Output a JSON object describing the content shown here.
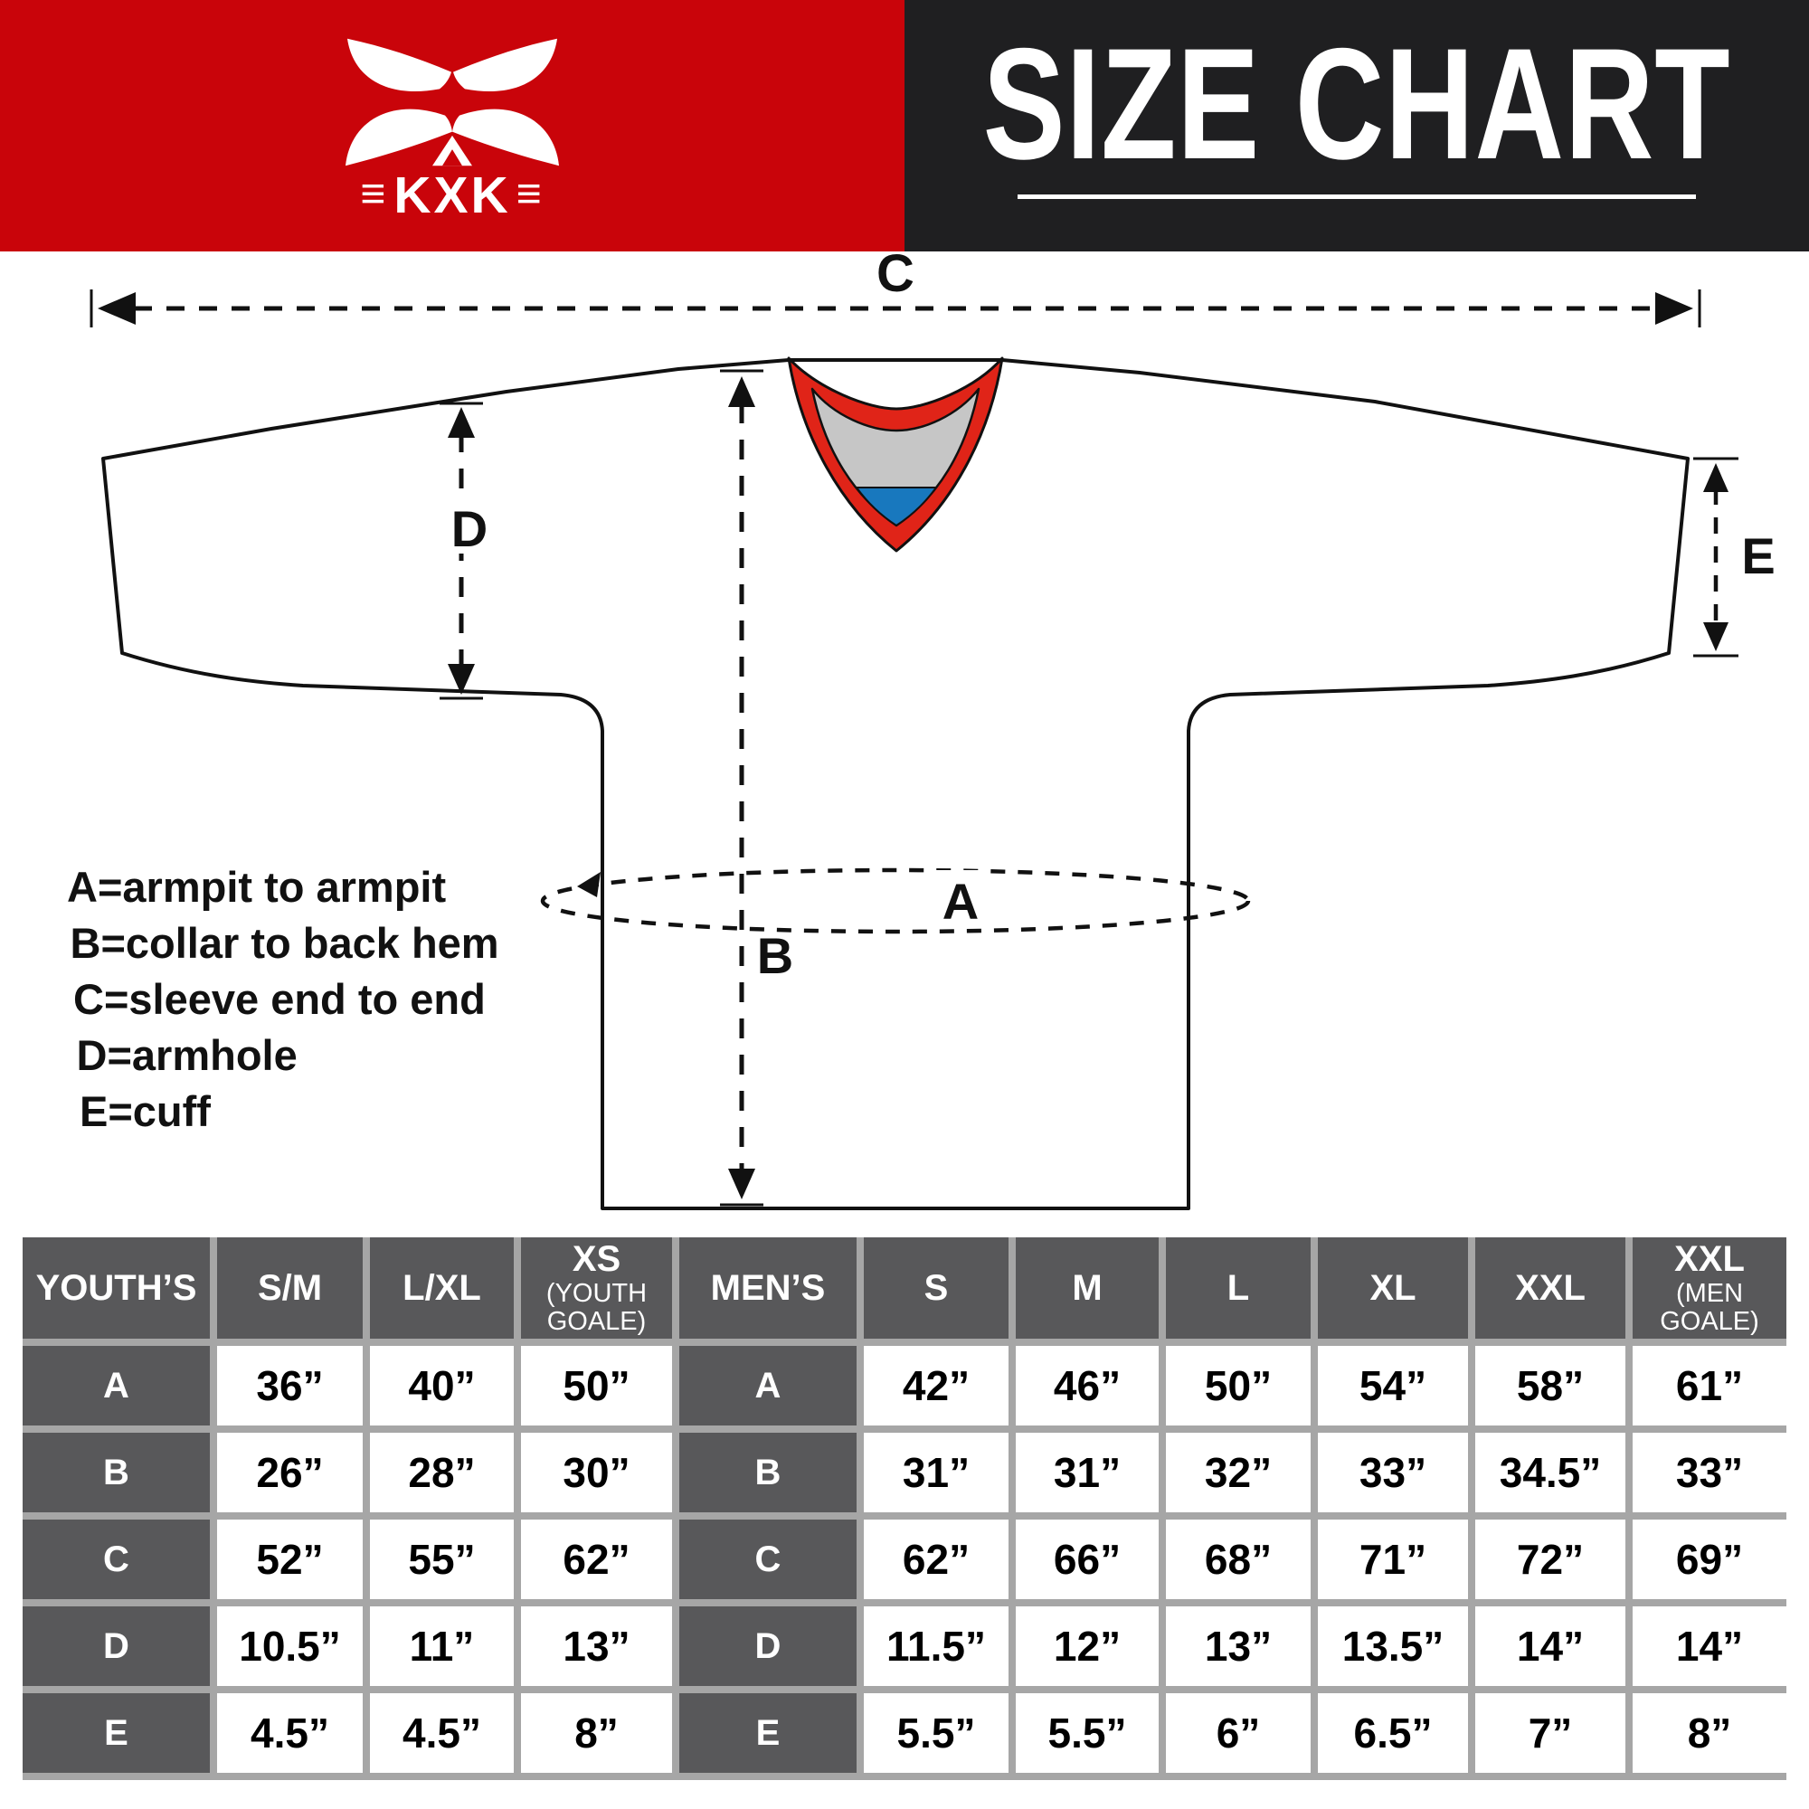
{
  "logo": {
    "text": "KXK",
    "bars": "≡"
  },
  "header": {
    "title": "SIZE CHART"
  },
  "colors": {
    "banner_red": "#c9040a",
    "banner_black": "#1f1f21",
    "collar_red": "#e02418",
    "collar_gray": "#c6c6c6",
    "collar_blue": "#1878be",
    "table_label_gray": "#58585a",
    "table_gap_gray": "#a6a6a6"
  },
  "diagram": {
    "labels": {
      "a": "A",
      "b": "B",
      "c": "C",
      "d": "D",
      "e": "E"
    }
  },
  "legend": {
    "items": [
      "A=armpit to armpit",
      "B=collar to back hem",
      "C=sleeve end to end",
      "D=armhole",
      "E=cuff"
    ]
  },
  "size_table": {
    "row_labels": [
      "A",
      "B",
      "C",
      "D",
      "E"
    ],
    "youth": {
      "label": "YOUTH’S",
      "columns": [
        {
          "label": "S/M"
        },
        {
          "label": "L/XL"
        },
        {
          "label": "XS",
          "sub": "(YOUTH GOALE)"
        }
      ],
      "rows": [
        [
          "36”",
          "40”",
          "50”"
        ],
        [
          "26”",
          "28”",
          "30”"
        ],
        [
          "52”",
          "55”",
          "62”"
        ],
        [
          "10.5”",
          "11”",
          "13”"
        ],
        [
          "4.5”",
          "4.5”",
          "8”"
        ]
      ]
    },
    "men": {
      "label": "MEN’S",
      "columns": [
        {
          "label": "S"
        },
        {
          "label": "M"
        },
        {
          "label": "L"
        },
        {
          "label": "XL"
        },
        {
          "label": "XXL"
        },
        {
          "label": "XXL",
          "sub": "(MEN GOALE)"
        }
      ],
      "rows": [
        [
          "42”",
          "46”",
          "50”",
          "54”",
          "58”",
          "61”"
        ],
        [
          "31”",
          "31”",
          "32”",
          "33”",
          "34.5”",
          "33”"
        ],
        [
          "62”",
          "66”",
          "68”",
          "71”",
          "72”",
          "69”"
        ],
        [
          "11.5”",
          "12”",
          "13”",
          "13.5”",
          "14”",
          "14”"
        ],
        [
          "5.5”",
          "5.5”",
          "6”",
          "6.5”",
          "7”",
          "8”"
        ]
      ]
    }
  }
}
